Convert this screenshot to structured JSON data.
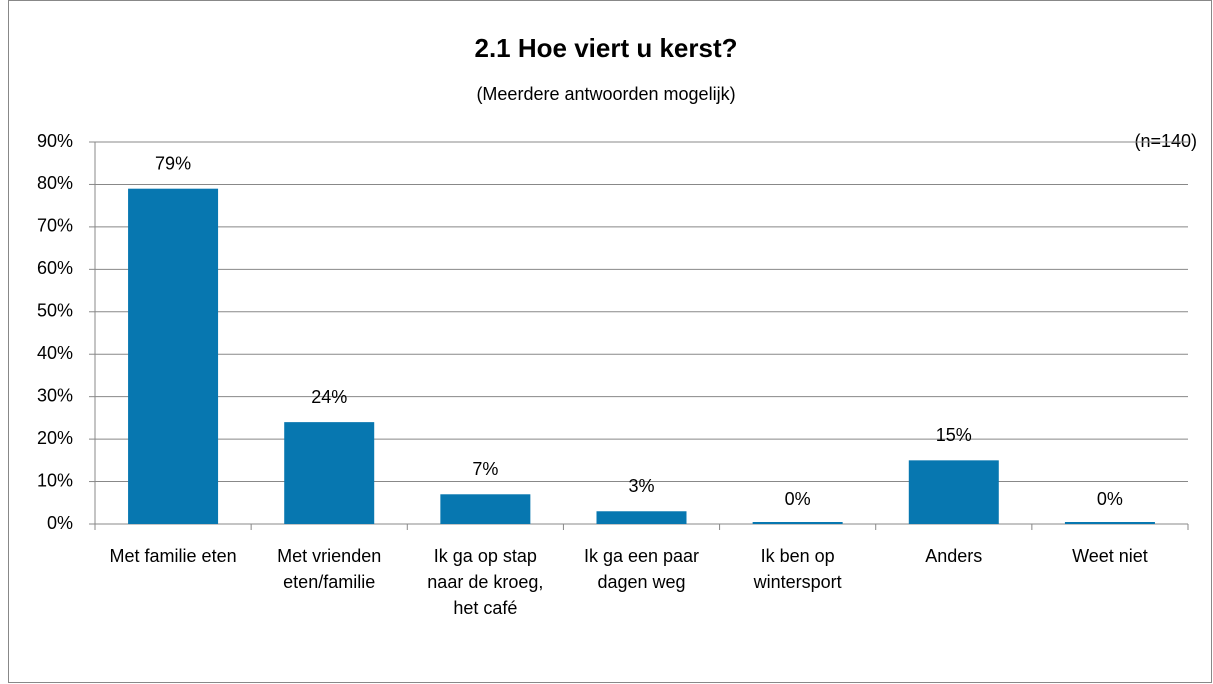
{
  "chart_data": {
    "type": "bar",
    "title": "2.1 Hoe viert u kerst?",
    "subtitle": "(Meerdere antwoorden mogelijk)",
    "annotation": "(n=140)",
    "categories": [
      "Met familie eten",
      "Met vrienden eten/familie",
      "Ik ga op stap naar de kroeg, het café",
      "Ik ga een paar dagen weg",
      "Ik ben op wintersport",
      "Anders",
      "Weet niet"
    ],
    "values": [
      79,
      24,
      7,
      3,
      0,
      15,
      0
    ],
    "value_labels": [
      "79%",
      "24%",
      "7%",
      "3%",
      "0%",
      "15%",
      "0%"
    ],
    "color": "#0777b0",
    "ylim": [
      0,
      90
    ],
    "yticks": [
      {
        "value": 0,
        "label": "0%"
      },
      {
        "value": 10,
        "label": "10%"
      },
      {
        "value": 20,
        "label": "20%"
      },
      {
        "value": 30,
        "label": "30%"
      },
      {
        "value": 40,
        "label": "40%"
      },
      {
        "value": 50,
        "label": "50%"
      },
      {
        "value": 60,
        "label": "60%"
      },
      {
        "value": 70,
        "label": "70%"
      },
      {
        "value": 80,
        "label": "80%"
      },
      {
        "value": 90,
        "label": "90%"
      }
    ],
    "grid": true
  }
}
